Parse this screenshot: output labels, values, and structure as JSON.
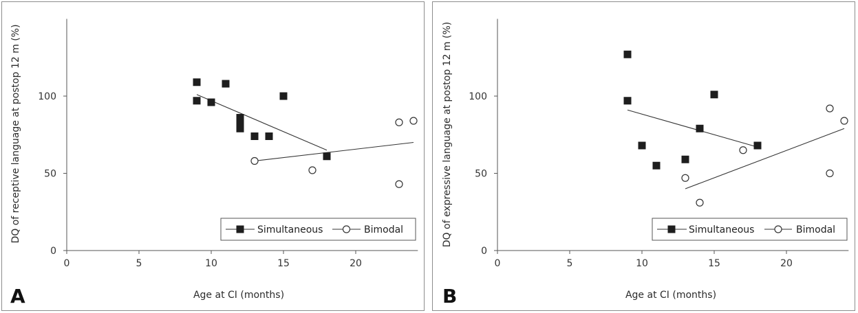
{
  "chart_data": [
    {
      "panel": "A",
      "type": "scatter",
      "xlabel": "Age at CI (months)",
      "ylabel": "DQ of receptive language at postop 12 m (%)",
      "xlim": [
        0,
        24.3
      ],
      "ylim": [
        0,
        150
      ],
      "xticks": [
        0,
        5,
        10,
        15,
        20
      ],
      "yticks": [
        0,
        50,
        100
      ],
      "grid": false,
      "legend_position": "bottom-right",
      "series": [
        {
          "name": "Simultaneous",
          "marker": "filled-square",
          "points": [
            [
              9,
              109
            ],
            [
              9,
              97
            ],
            [
              10,
              96
            ],
            [
              11,
              108
            ],
            [
              12,
              86
            ],
            [
              12,
              82
            ],
            [
              12,
              79
            ],
            [
              13,
              74
            ],
            [
              14,
              74
            ],
            [
              15,
              100
            ],
            [
              18,
              61
            ]
          ],
          "trend_line": [
            [
              9,
              101
            ],
            [
              18,
              65
            ]
          ]
        },
        {
          "name": "Bimodal",
          "marker": "open-circle",
          "points": [
            [
              13,
              58
            ],
            [
              17,
              52
            ],
            [
              23,
              83
            ],
            [
              24,
              84
            ],
            [
              23,
              43
            ]
          ],
          "trend_line": [
            [
              13,
              58
            ],
            [
              24,
              70
            ]
          ]
        }
      ]
    },
    {
      "panel": "B",
      "type": "scatter",
      "xlabel": "Age at CI (months)",
      "ylabel": "DQ of expressive language at postop 12 m (%)",
      "xlim": [
        0,
        24.3
      ],
      "ylim": [
        0,
        150
      ],
      "xticks": [
        0,
        5,
        10,
        15,
        20
      ],
      "yticks": [
        0,
        50,
        100
      ],
      "grid": false,
      "legend_position": "bottom-right",
      "series": [
        {
          "name": "Simultaneous",
          "marker": "filled-square",
          "points": [
            [
              9,
              127
            ],
            [
              9,
              97
            ],
            [
              10,
              68
            ],
            [
              11,
              55
            ],
            [
              13,
              59
            ],
            [
              14,
              79
            ],
            [
              15,
              101
            ],
            [
              18,
              68
            ]
          ],
          "trend_line": [
            [
              9,
              91
            ],
            [
              18,
              67
            ]
          ]
        },
        {
          "name": "Bimodal",
          "marker": "open-circle",
          "points": [
            [
              13,
              47
            ],
            [
              14,
              31
            ],
            [
              17,
              65
            ],
            [
              23,
              92
            ],
            [
              24,
              84
            ],
            [
              23,
              50
            ]
          ],
          "trend_line": [
            [
              13,
              40
            ],
            [
              24,
              79
            ]
          ]
        }
      ]
    }
  ],
  "colors": {
    "marker": "#1e1e1e",
    "line": "#333333",
    "axis": "#555555",
    "frame": "#8c8c8c"
  }
}
